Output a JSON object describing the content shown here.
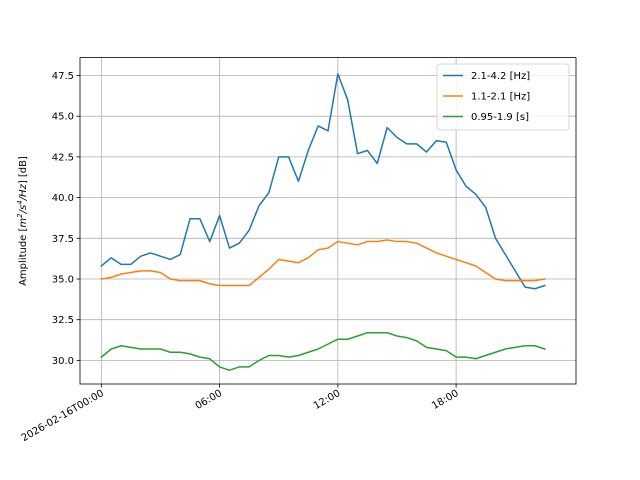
{
  "chart_data": {
    "type": "line",
    "title": "",
    "xlabel": "",
    "ylabel_parts": [
      "Amplitude [",
      "m",
      "2",
      "/s",
      "4",
      "/Hz",
      "] [dB]"
    ],
    "x_start": "2026-02-16T00:00",
    "x_step_minutes": 30,
    "x_ticks": [
      {
        "label": "2026-02-16T00:00",
        "value": "2026-02-16T00:00"
      },
      {
        "label": "06:00",
        "value": "2026-02-16T06:00"
      },
      {
        "label": "12:00",
        "value": "2026-02-16T12:00"
      },
      {
        "label": "18:00",
        "value": "2026-02-16T18:00"
      }
    ],
    "xlim": [
      "2026-02-15T22:55",
      "2026-02-17T00:05"
    ],
    "ylim": [
      28.55,
      48.6
    ],
    "y_ticks": [
      30.0,
      32.5,
      35.0,
      37.5,
      40.0,
      42.5,
      45.0,
      47.5
    ],
    "y_tick_labels": [
      "30.0",
      "32.5",
      "35.0",
      "37.5",
      "40.0",
      "42.5",
      "45.0",
      "47.5"
    ],
    "grid": true,
    "legend_position": "top-right",
    "series": [
      {
        "name": "2.1-4.2 [Hz]",
        "color": "#1f77b4",
        "values": [
          35.8,
          36.3,
          35.9,
          35.9,
          36.4,
          36.6,
          36.4,
          36.2,
          36.5,
          38.7,
          38.7,
          37.3,
          38.9,
          36.9,
          37.2,
          38.0,
          39.5,
          40.3,
          42.5,
          42.5,
          41.0,
          42.9,
          44.4,
          44.1,
          47.6,
          46.0,
          42.7,
          42.9,
          42.1,
          44.3,
          43.7,
          43.3,
          43.3,
          42.8,
          43.5,
          43.4,
          41.7,
          40.7,
          40.2,
          39.4,
          37.5,
          36.5,
          35.5,
          34.5,
          34.4,
          34.6
        ]
      },
      {
        "name": "1.1-2.1 [Hz]",
        "color": "#ff7f0e",
        "values": [
          35.0,
          35.1,
          35.3,
          35.4,
          35.5,
          35.5,
          35.4,
          35.0,
          34.9,
          34.9,
          34.9,
          34.7,
          34.6,
          34.6,
          34.6,
          34.6,
          35.1,
          35.6,
          36.2,
          36.1,
          36.0,
          36.3,
          36.8,
          36.9,
          37.3,
          37.2,
          37.1,
          37.3,
          37.3,
          37.4,
          37.3,
          37.3,
          37.2,
          36.9,
          36.6,
          36.4,
          36.2,
          36.0,
          35.8,
          35.4,
          35.0,
          34.9,
          34.9,
          34.9,
          34.9,
          35.0
        ]
      },
      {
        "name": "0.95-1.9 [s]",
        "color": "#2ca02c",
        "values": [
          30.2,
          30.7,
          30.9,
          30.8,
          30.7,
          30.7,
          30.7,
          30.5,
          30.5,
          30.4,
          30.2,
          30.1,
          29.6,
          29.4,
          29.6,
          29.6,
          30.0,
          30.3,
          30.3,
          30.2,
          30.3,
          30.5,
          30.7,
          31.0,
          31.3,
          31.3,
          31.5,
          31.7,
          31.7,
          31.7,
          31.5,
          31.4,
          31.2,
          30.8,
          30.7,
          30.6,
          30.2,
          30.2,
          30.1,
          30.3,
          30.5,
          30.7,
          30.8,
          30.9,
          30.9,
          30.7
        ]
      }
    ]
  }
}
